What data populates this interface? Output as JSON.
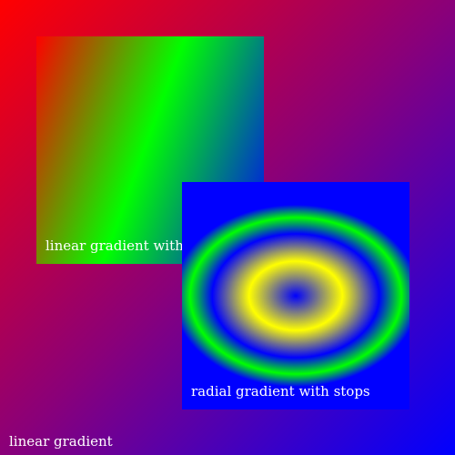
{
  "canvas": {
    "label": "linear gradient",
    "colors": [
      "#ff0000",
      "#8a0079",
      "#0000ff"
    ]
  },
  "panels": {
    "linear": {
      "label": "linear gradient with stops",
      "colors": [
        "#ff0000",
        "#00ff00",
        "#0000ff"
      ]
    },
    "radial": {
      "label": "radial gradient with stops",
      "colors": [
        "#0000ff",
        "#ffff00",
        "#0000ff",
        "#00ff00",
        "#0000ff"
      ]
    }
  }
}
